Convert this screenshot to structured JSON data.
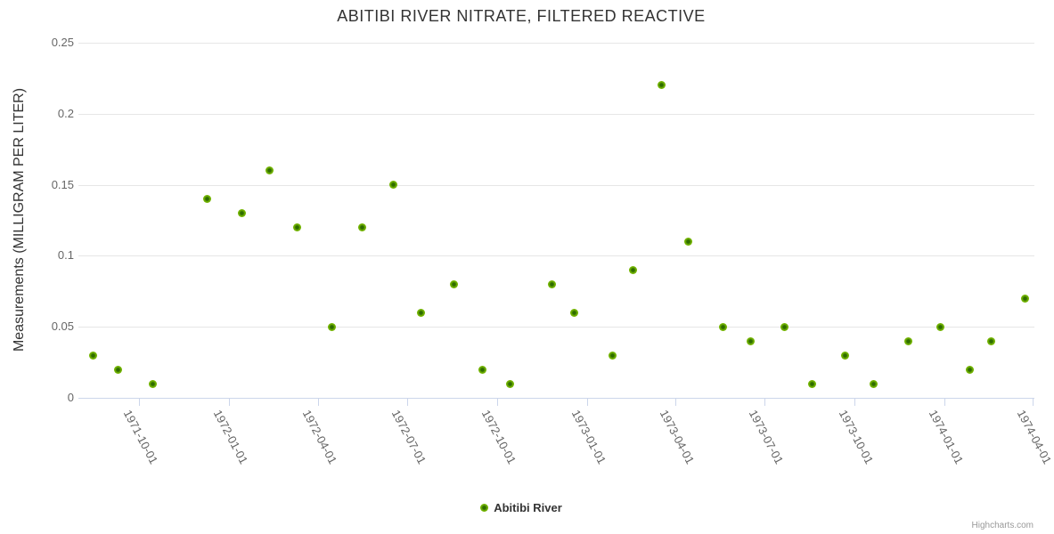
{
  "chart": {
    "credit": "Highcharts.com"
  },
  "colors": {
    "marker_outer": "#74b500",
    "marker_mid": "#5a9a00",
    "marker_inner": "#2f6d00",
    "gridline": "#e6e6e6",
    "axis_line": "#ccd6eb",
    "tick_mark": "#ccd6eb",
    "axis_label": "#666666",
    "title_text": "#333333",
    "credit_text": "#999999"
  },
  "chart_data": {
    "type": "scatter",
    "title": "ABITIBI RIVER NITRATE, FILTERED REACTIVE",
    "xlabel": "",
    "ylabel": "Measurements (MILLIGRAM PER LITER)",
    "ylim": [
      0,
      0.25
    ],
    "grid": true,
    "legend_position": "bottom-center",
    "y_ticks": [
      {
        "value": 0,
        "label": "0"
      },
      {
        "value": 0.05,
        "label": "0.05"
      },
      {
        "value": 0.1,
        "label": "0.1"
      },
      {
        "value": 0.15,
        "label": "0.15"
      },
      {
        "value": 0.2,
        "label": "0.2"
      },
      {
        "value": 0.25,
        "label": "0.25"
      }
    ],
    "x_ticks": [
      "1971-10-01",
      "1972-01-01",
      "1972-04-01",
      "1972-07-01",
      "1972-10-01",
      "1973-01-01",
      "1973-04-01",
      "1973-07-01",
      "1973-10-01",
      "1974-01-01",
      "1974-04-01"
    ],
    "series": [
      {
        "name": "Abitibi River",
        "points": [
          [
            "1971-08-16",
            0.03
          ],
          [
            "1971-09-10",
            0.02
          ],
          [
            "1971-10-16",
            0.01
          ],
          [
            "1971-12-10",
            0.14
          ],
          [
            "1972-01-15",
            0.13
          ],
          [
            "1972-02-12",
            0.16
          ],
          [
            "1972-03-11",
            0.12
          ],
          [
            "1972-04-15",
            0.05
          ],
          [
            "1972-05-16",
            0.12
          ],
          [
            "1972-06-17",
            0.15
          ],
          [
            "1972-07-15",
            0.06
          ],
          [
            "1972-08-18",
            0.08
          ],
          [
            "1972-09-16",
            0.02
          ],
          [
            "1972-10-14",
            0.01
          ],
          [
            "1972-11-26",
            0.08
          ],
          [
            "1972-12-19",
            0.06
          ],
          [
            "1973-01-27",
            0.03
          ],
          [
            "1973-02-17",
            0.09
          ],
          [
            "1973-03-18",
            0.22
          ],
          [
            "1973-04-14",
            0.11
          ],
          [
            "1973-05-20",
            0.05
          ],
          [
            "1973-06-17",
            0.04
          ],
          [
            "1973-07-22",
            0.05
          ],
          [
            "1973-08-19",
            0.01
          ],
          [
            "1973-09-22",
            0.03
          ],
          [
            "1973-10-21",
            0.01
          ],
          [
            "1973-11-25",
            0.04
          ],
          [
            "1973-12-28",
            0.05
          ],
          [
            "1974-01-27",
            0.02
          ],
          [
            "1974-02-18",
            0.04
          ],
          [
            "1974-03-24",
            0.07
          ]
        ]
      }
    ]
  }
}
